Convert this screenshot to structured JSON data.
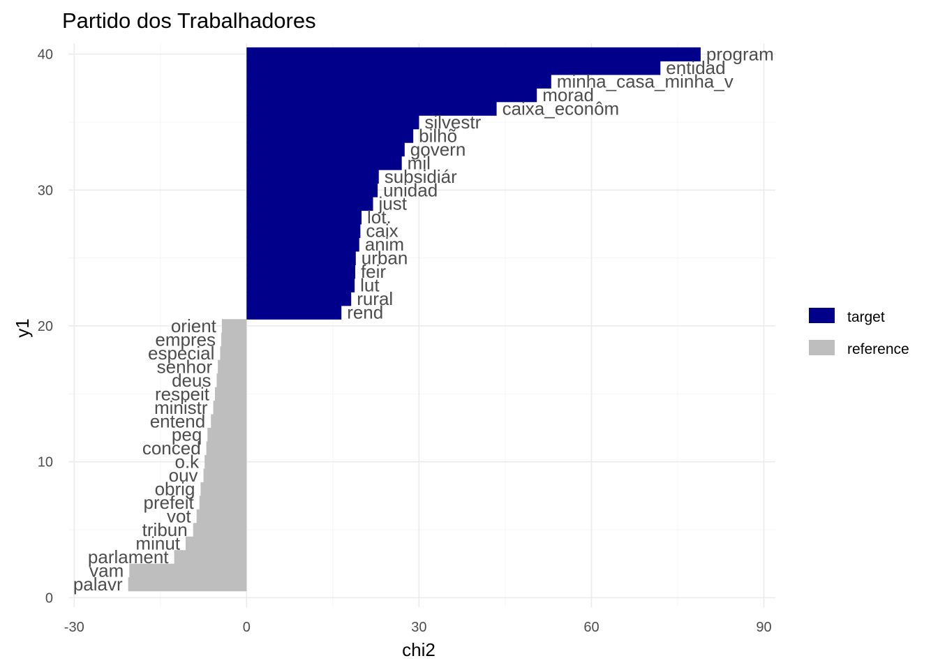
{
  "chart_data": {
    "type": "bar",
    "orientation": "horizontal",
    "title": "Partido dos Trabalhadores",
    "xlabel": "chi2",
    "ylabel": "y1",
    "xlim": [
      -31,
      92
    ],
    "ylim": [
      -0.7,
      40.8
    ],
    "x_ticks": [
      -30,
      0,
      30,
      60,
      90
    ],
    "y_ticks": [
      0,
      10,
      20,
      30,
      40
    ],
    "grid": true,
    "legend_position": "right",
    "colors": {
      "target": "#00008b",
      "reference": "#bebebe"
    },
    "series": [
      {
        "name": "target",
        "points": [
          {
            "label": "program",
            "y": 40,
            "value": 79
          },
          {
            "label": "entidad",
            "y": 39,
            "value": 72
          },
          {
            "label": "minha_casa_minha_v",
            "y": 38,
            "value": 53
          },
          {
            "label": "morad",
            "y": 37,
            "value": 50.5
          },
          {
            "label": "caixa_econôm",
            "y": 36,
            "value": 43.5
          },
          {
            "label": "silvestr",
            "y": 35,
            "value": 30
          },
          {
            "label": "bilhõ",
            "y": 34,
            "value": 29
          },
          {
            "label": "govern",
            "y": 33,
            "value": 27.5
          },
          {
            "label": "mil",
            "y": 32,
            "value": 27
          },
          {
            "label": "subsidiár",
            "y": 31,
            "value": 23
          },
          {
            "label": "unidad",
            "y": 30,
            "value": 22.8
          },
          {
            "label": "just",
            "y": 29,
            "value": 22
          },
          {
            "label": "lot.",
            "y": 28,
            "value": 20
          },
          {
            "label": "caix",
            "y": 27,
            "value": 19.8
          },
          {
            "label": "anim",
            "y": 26,
            "value": 19.6
          },
          {
            "label": "urban",
            "y": 25,
            "value": 19
          },
          {
            "label": "feir",
            "y": 24,
            "value": 18.9
          },
          {
            "label": "lut",
            "y": 23,
            "value": 18.8
          },
          {
            "label": "rural",
            "y": 22,
            "value": 18.2
          },
          {
            "label": "rend",
            "y": 21,
            "value": 16.5
          }
        ]
      },
      {
        "name": "reference",
        "points": [
          {
            "label": "orient",
            "y": 20,
            "value": -4.3
          },
          {
            "label": "empres",
            "y": 19,
            "value": -4.4
          },
          {
            "label": "especial",
            "y": 18,
            "value": -4.6
          },
          {
            "label": "senhor",
            "y": 17,
            "value": -5
          },
          {
            "label": "deus",
            "y": 16,
            "value": -5.2
          },
          {
            "label": "respeit",
            "y": 15,
            "value": -5.5
          },
          {
            "label": "ministr",
            "y": 14,
            "value": -5.8
          },
          {
            "label": "entend",
            "y": 13,
            "value": -6.2
          },
          {
            "label": "peq",
            "y": 12,
            "value": -6.8
          },
          {
            "label": "conced",
            "y": 11,
            "value": -7
          },
          {
            "label": "o.k",
            "y": 10,
            "value": -7.3
          },
          {
            "label": "ouv",
            "y": 9,
            "value": -7.5
          },
          {
            "label": "obrig",
            "y": 8,
            "value": -8
          },
          {
            "label": "prefeit",
            "y": 7,
            "value": -8.2
          },
          {
            "label": "vot",
            "y": 6,
            "value": -8.7
          },
          {
            "label": "tribun",
            "y": 5,
            "value": -9.3
          },
          {
            "label": "minut",
            "y": 4,
            "value": -10.6
          },
          {
            "label": "parlament",
            "y": 3,
            "value": -12.6
          },
          {
            "label": "vam",
            "y": 2,
            "value": -20.4
          },
          {
            "label": "palavr",
            "y": 1,
            "value": -20.6
          }
        ]
      }
    ]
  }
}
